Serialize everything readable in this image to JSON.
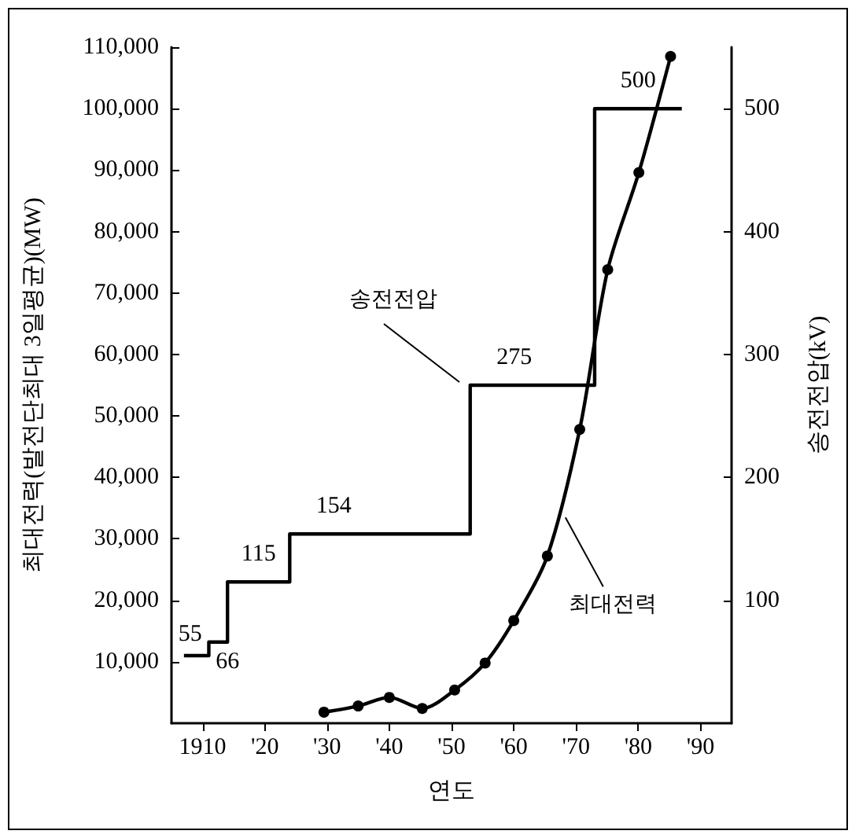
{
  "chart_data": {
    "type": "line",
    "xlabel": "연도",
    "ylabel": "최대전력(발전단최대 3일평균)(MW)",
    "y2label": "송전전압(kV)",
    "xlim": [
      1905,
      1995
    ],
    "xticks": [
      {
        "value": 1910,
        "label": "1910"
      },
      {
        "value": 1920,
        "label": "'20"
      },
      {
        "value": 1930,
        "label": "'30"
      },
      {
        "value": 1940,
        "label": "'40"
      },
      {
        "value": 1950,
        "label": "'50"
      },
      {
        "value": 1960,
        "label": "'60"
      },
      {
        "value": 1970,
        "label": "'70"
      },
      {
        "value": 1980,
        "label": "'80"
      },
      {
        "value": 1990,
        "label": "'90"
      }
    ],
    "ylim": [
      0,
      110000
    ],
    "yticks": [
      {
        "value": 10000,
        "label": "10,000"
      },
      {
        "value": 20000,
        "label": "20,000"
      },
      {
        "value": 30000,
        "label": "30,000"
      },
      {
        "value": 40000,
        "label": "40,000"
      },
      {
        "value": 50000,
        "label": "50,000"
      },
      {
        "value": 60000,
        "label": "60,000"
      },
      {
        "value": 70000,
        "label": "70,000"
      },
      {
        "value": 80000,
        "label": "80,000"
      },
      {
        "value": 90000,
        "label": "90,000"
      },
      {
        "value": 100000,
        "label": "100,000"
      },
      {
        "value": 110000,
        "label": "110,000"
      }
    ],
    "y2lim": [
      0,
      550
    ],
    "y2ticks": [
      100,
      200,
      300,
      400,
      500
    ],
    "series": [
      {
        "type": "step",
        "axis": "y2",
        "color": "#000000",
        "marker": "none",
        "x": [
          1907,
          1911,
          1914,
          1924,
          1953,
          1973,
          1987
        ],
        "values": [
          55,
          66,
          115,
          154,
          275,
          500,
          500
        ],
        "value_labels": [
          "55",
          "66",
          "115",
          "154",
          "275",
          "500",
          null
        ]
      },
      {
        "type": "line",
        "color": "#000000",
        "marker": "circle",
        "x": [
          1929.5,
          1935,
          1940,
          1945.3,
          1950.5,
          1955.4,
          1960,
          1965.4,
          1970.6,
          1975.1,
          1980.1,
          1985.2
        ],
        "values": [
          1800,
          2800,
          4200,
          2400,
          5400,
          9800,
          16700,
          27200,
          47800,
          73800,
          89600,
          108500
        ]
      }
    ],
    "annotations": [
      "송전전압",
      {
        "text": "최대전력",
        "x": 1967.8,
        "y": 34000
      }
    ],
    "grid": false
  }
}
